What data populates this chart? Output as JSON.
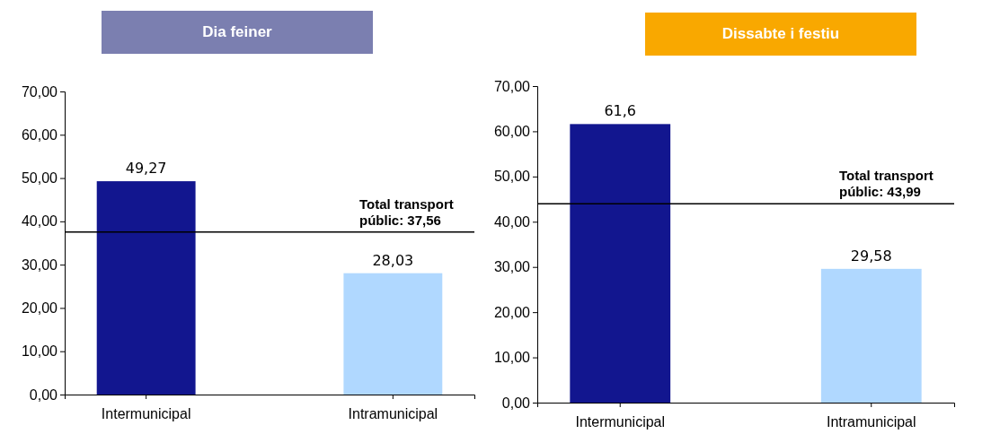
{
  "chart_data": [
    {
      "type": "bar",
      "title": "Dia feiner",
      "categories": [
        "Intermunicipal",
        "Intramunicipal"
      ],
      "values": [
        49.27,
        28.03
      ],
      "colors": [
        "#12168f",
        "#b0d8ff"
      ],
      "value_labels": [
        "49,27",
        "28,03"
      ],
      "ylim": [
        0,
        70
      ],
      "yticks": [
        {
          "value": 0,
          "label": "0,00"
        },
        {
          "value": 10,
          "label": "10,00"
        },
        {
          "value": 20,
          "label": "20,00"
        },
        {
          "value": 30,
          "label": "30,00"
        },
        {
          "value": 40,
          "label": "40,00"
        },
        {
          "value": 50,
          "label": "50,00"
        },
        {
          "value": 60,
          "label": "60,00"
        },
        {
          "value": 70,
          "label": "70,00"
        }
      ],
      "ref_lines": [
        {
          "axis": "y",
          "value": 37.56,
          "label": "Total transport públic: 37,56",
          "color": "#000000"
        }
      ],
      "grid": false
    },
    {
      "type": "bar",
      "title": "Dissabte i festiu",
      "categories": [
        "Intermunicipal",
        "Intramunicipal"
      ],
      "values": [
        61.6,
        29.58
      ],
      "colors": [
        "#12168f",
        "#b0d8ff"
      ],
      "value_labels": [
        "61,6",
        "29,58"
      ],
      "ylim": [
        0,
        70
      ],
      "yticks": [
        {
          "value": 0,
          "label": "0,00"
        },
        {
          "value": 10,
          "label": "10,00"
        },
        {
          "value": 20,
          "label": "20,00"
        },
        {
          "value": 30,
          "label": "30,00"
        },
        {
          "value": 40,
          "label": "40,00"
        },
        {
          "value": 50,
          "label": "50,00"
        },
        {
          "value": 60,
          "label": "60,00"
        },
        {
          "value": 70,
          "label": "70,00"
        }
      ],
      "ref_lines": [
        {
          "axis": "y",
          "value": 43.99,
          "label": "Total transport públic: 43,99",
          "color": "#000000"
        }
      ],
      "grid": false
    }
  ]
}
